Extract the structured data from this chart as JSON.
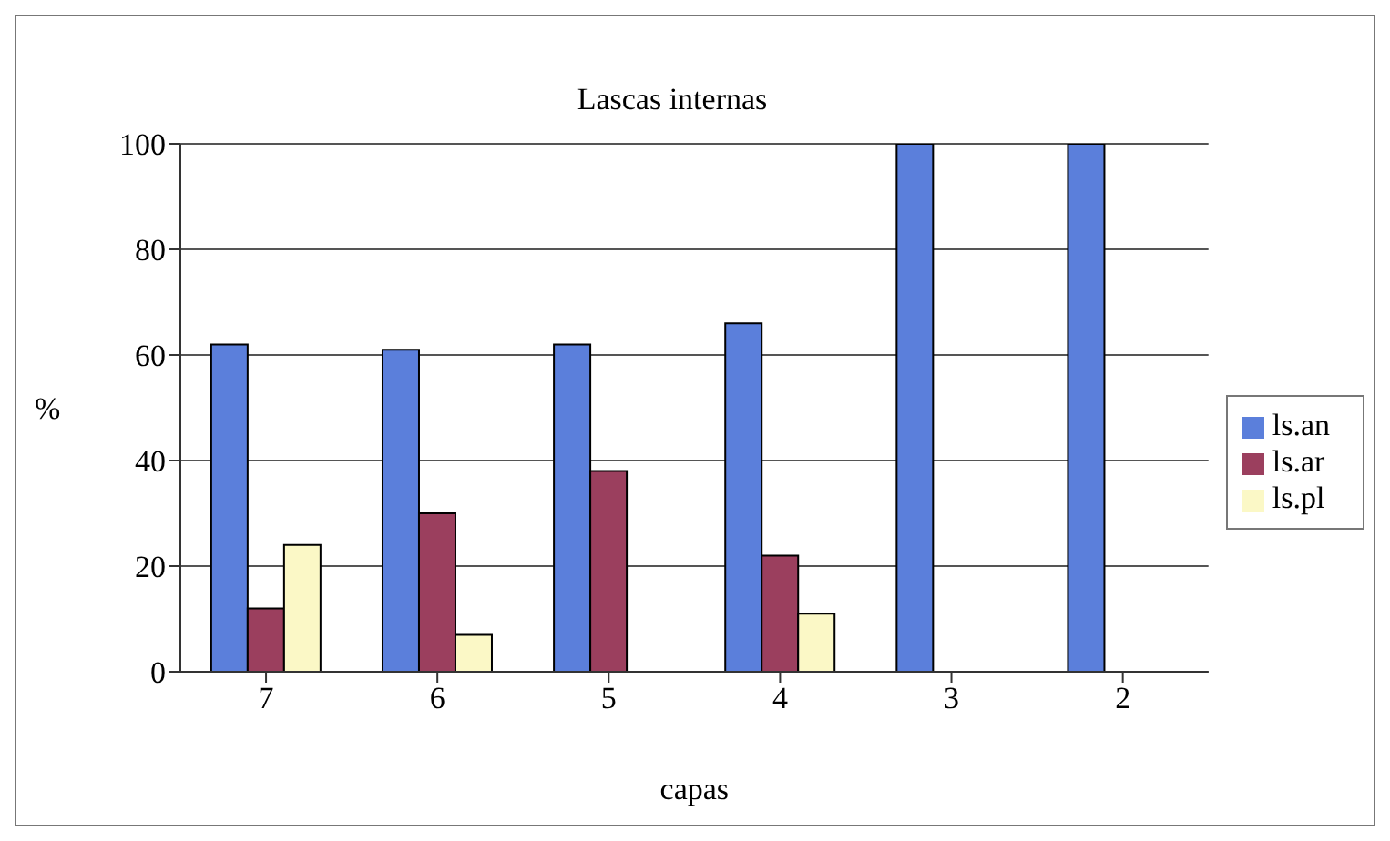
{
  "chart_data": {
    "type": "bar",
    "title": "Lascas internas",
    "xlabel": "capas",
    "ylabel": "%",
    "categories": [
      "7",
      "6",
      "5",
      "4",
      "3",
      "2"
    ],
    "series": [
      {
        "name": "ls.an",
        "color": "#5b7fdb",
        "values": [
          62,
          61,
          62,
          66,
          100,
          100
        ]
      },
      {
        "name": "ls.ar",
        "color": "#9b3f5e",
        "values": [
          12,
          30,
          38,
          22,
          0,
          0
        ]
      },
      {
        "name": "ls.pl",
        "color": "#fbf8c6",
        "values": [
          24,
          7,
          0,
          11,
          0,
          0
        ]
      }
    ],
    "ylim": [
      0,
      100
    ],
    "yticks": [
      0,
      20,
      40,
      60,
      80,
      100
    ],
    "grid": "y",
    "legend": "right"
  }
}
